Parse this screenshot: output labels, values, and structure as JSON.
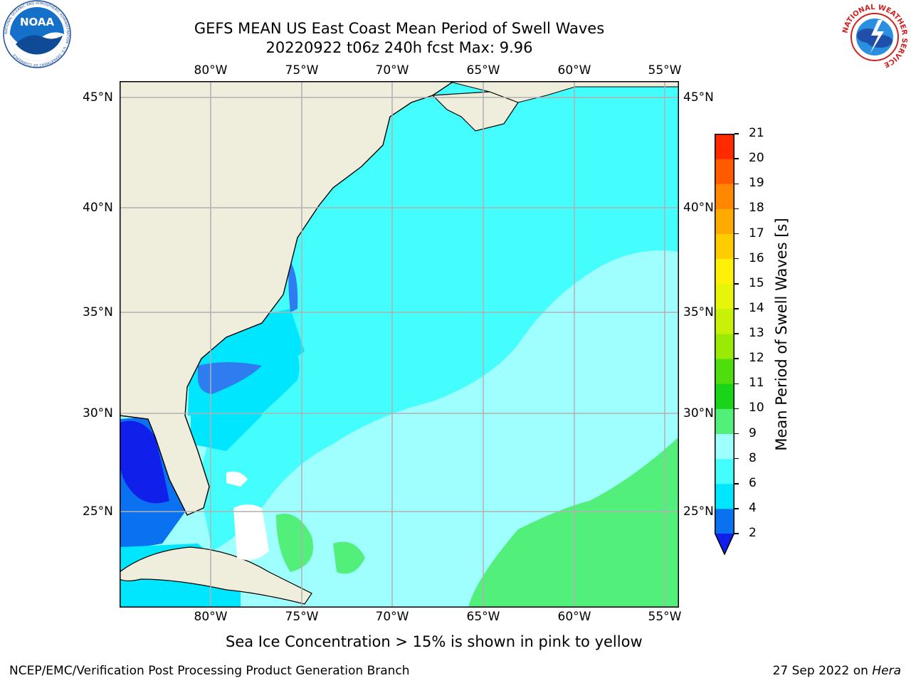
{
  "header": {
    "title_line1": "GEFS MEAN US East Coast Mean Period of Swell Waves",
    "title_line2": "20220922 t06z 240h fcst   Max: 9.96"
  },
  "logos": {
    "noaa_text": "NOAA",
    "noaa_ring_text": "NATIONAL OCEANIC AND ATMOSPHERIC ADMINISTRATION · U.S. DEPARTMENT OF COMMERCE",
    "nws_ring_text": "NATIONAL WEATHER SERVICE"
  },
  "map": {
    "lon_labels": [
      "80°W",
      "75°W",
      "70°W",
      "65°W",
      "60°W",
      "55°W"
    ],
    "lat_labels": [
      "45°N",
      "40°N",
      "35°N",
      "30°N",
      "25°N"
    ],
    "lon_range": [
      -85,
      -54
    ],
    "lat_range": [
      20.5,
      46
    ],
    "grid": true,
    "land_color": "#efeddc"
  },
  "colorbar": {
    "label": "Mean Period of Swell Waves [s]",
    "ticks": [
      "2",
      "4",
      "6",
      "8",
      "9",
      "10",
      "11",
      "12",
      "13",
      "14",
      "15",
      "16",
      "17",
      "18",
      "19",
      "20",
      "21"
    ],
    "colors": [
      "#0a72f0",
      "#00e6ff",
      "#44fefe",
      "#9ffefe",
      "#52f07a",
      "#19d419",
      "#4fdd0e",
      "#9bea05",
      "#c8f008",
      "#e6f50a",
      "#fff00a",
      "#ffcc00",
      "#ffaa00",
      "#ff8800",
      "#ff5a00",
      "#ff2a00"
    ],
    "under_color": "#1020ea",
    "extend": "min"
  },
  "notes": {
    "sea_ice": "Sea Ice Concentration > 15% is shown in pink to yellow"
  },
  "footer": {
    "left": "NCEP/EMC/Verification Post Processing Product Generation Branch",
    "date": "27 Sep 2022 on ",
    "machine": "Hera"
  }
}
